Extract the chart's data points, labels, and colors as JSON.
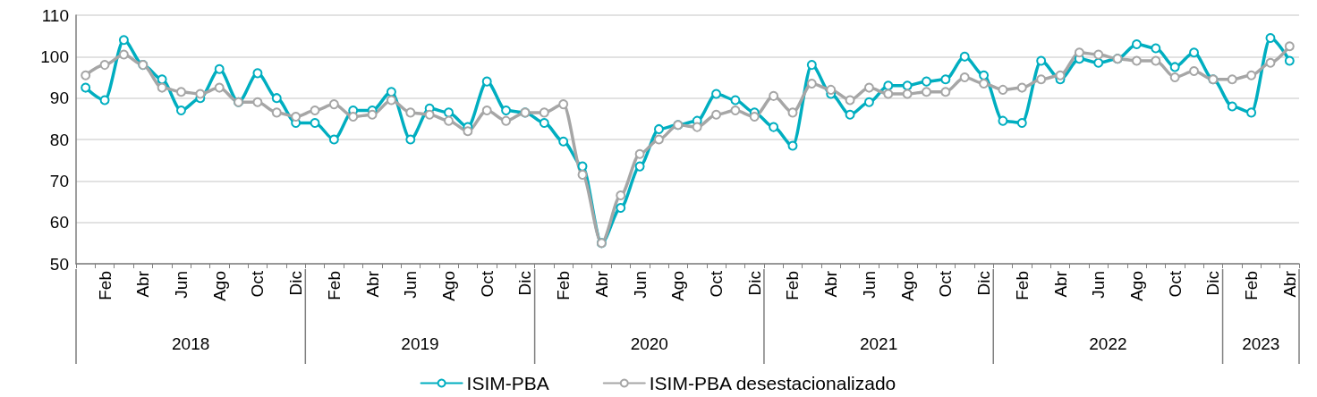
{
  "chart_data": {
    "type": "line",
    "categories": [
      null,
      "Feb",
      null,
      "Abr",
      null,
      "Jun",
      null,
      "Ago",
      null,
      "Oct",
      null,
      "Dic",
      null,
      "Feb",
      null,
      "Abr",
      null,
      "Jun",
      null,
      "Ago",
      null,
      "Oct",
      null,
      "Dic",
      null,
      "Feb",
      null,
      "Abr",
      null,
      "Jun",
      null,
      "Ago",
      null,
      "Oct",
      null,
      "Dic",
      null,
      "Feb",
      null,
      "Abr",
      null,
      "Jun",
      null,
      "Ago",
      null,
      "Oct",
      null,
      "Dic",
      null,
      "Feb",
      null,
      "Abr",
      null,
      "Jun",
      null,
      "Ago",
      null,
      "Oct",
      null,
      "Dic",
      null,
      "Feb",
      null,
      "Abr"
    ],
    "series": [
      {
        "name": "ISIM-PBA",
        "color": "#00aec0",
        "values": [
          92.5,
          89.5,
          104,
          98,
          94.5,
          87,
          90,
          97,
          89,
          96,
          90,
          84,
          84,
          80,
          87,
          87,
          91.5,
          80,
          87.5,
          86.5,
          83,
          94,
          87,
          86.5,
          84,
          79.5,
          73.5,
          55,
          63.5,
          73.5,
          82.5,
          83.5,
          84.5,
          91,
          89.5,
          86.5,
          83,
          78.5,
          98,
          91,
          86,
          89,
          93,
          93,
          94,
          94.5,
          100,
          95.5,
          84.5,
          84,
          99,
          94.5,
          99.5,
          98.5,
          99.5,
          103,
          102,
          97.5,
          101,
          94.5,
          88,
          86.5,
          104.5,
          99
        ]
      },
      {
        "name": "ISIM-PBA desestacionalizado",
        "color": "#a6a6a6",
        "values": [
          95.5,
          98,
          100.5,
          98,
          92.5,
          91.5,
          91,
          92.5,
          89,
          89,
          86.5,
          85.5,
          87,
          88.5,
          85.5,
          86,
          89.5,
          86.5,
          86,
          84.5,
          82,
          87,
          84.5,
          86.5,
          86.5,
          88.5,
          71.5,
          55,
          66.5,
          76.5,
          80,
          83.5,
          83,
          86,
          87,
          85.5,
          90.5,
          86.5,
          93.5,
          92,
          89.5,
          92.5,
          91,
          91,
          91.5,
          91.5,
          95,
          93.5,
          92,
          92.5,
          94.5,
          95.5,
          101,
          100.5,
          99.5,
          99,
          99,
          95,
          96.5,
          94.5,
          94.5,
          95.5,
          98.5,
          102.5
        ]
      }
    ],
    "annotations": [
      "2018",
      "2019",
      "2020",
      "2021",
      "2022",
      "2023"
    ],
    "ylim": [
      50,
      110
    ],
    "yticks": [
      50,
      60,
      70,
      80,
      90,
      100,
      110
    ],
    "grid": "y",
    "legend": "bottom",
    "marker": "circle",
    "line_style": "solid"
  }
}
